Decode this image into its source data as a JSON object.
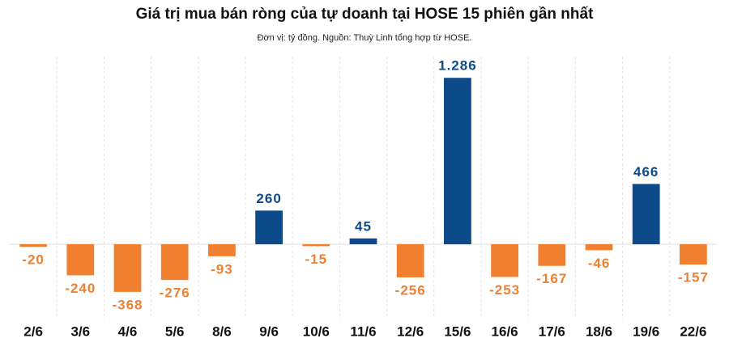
{
  "chart_data": {
    "type": "bar",
    "title": "Giá trị mua bán ròng của tự doanh tại HOSE 15 phiên gần nhất",
    "subtitle": "Đơn vị: tỷ đồng. Nguồn: Thuỳ Linh tổng hợp từ HOSE.",
    "categories": [
      "2/6",
      "3/6",
      "4/6",
      "5/6",
      "8/6",
      "9/6",
      "10/6",
      "11/6",
      "12/6",
      "15/6",
      "16/6",
      "17/6",
      "18/6",
      "19/6",
      "22/6"
    ],
    "values": [
      -20,
      -240,
      -368,
      -276,
      -93,
      260,
      -15,
      45,
      -256,
      1286,
      -253,
      -167,
      -46,
      466,
      -157
    ],
    "value_labels": [
      "-20",
      "-240",
      "-368",
      "-276",
      "-93",
      "260",
      "-15",
      "45",
      "-256",
      "1.286",
      "-253",
      "-167",
      "-46",
      "466",
      "-157"
    ],
    "positive_color": "#0d4a8a",
    "negative_color": "#f08030",
    "ylim": [
      -600,
      1400
    ]
  }
}
